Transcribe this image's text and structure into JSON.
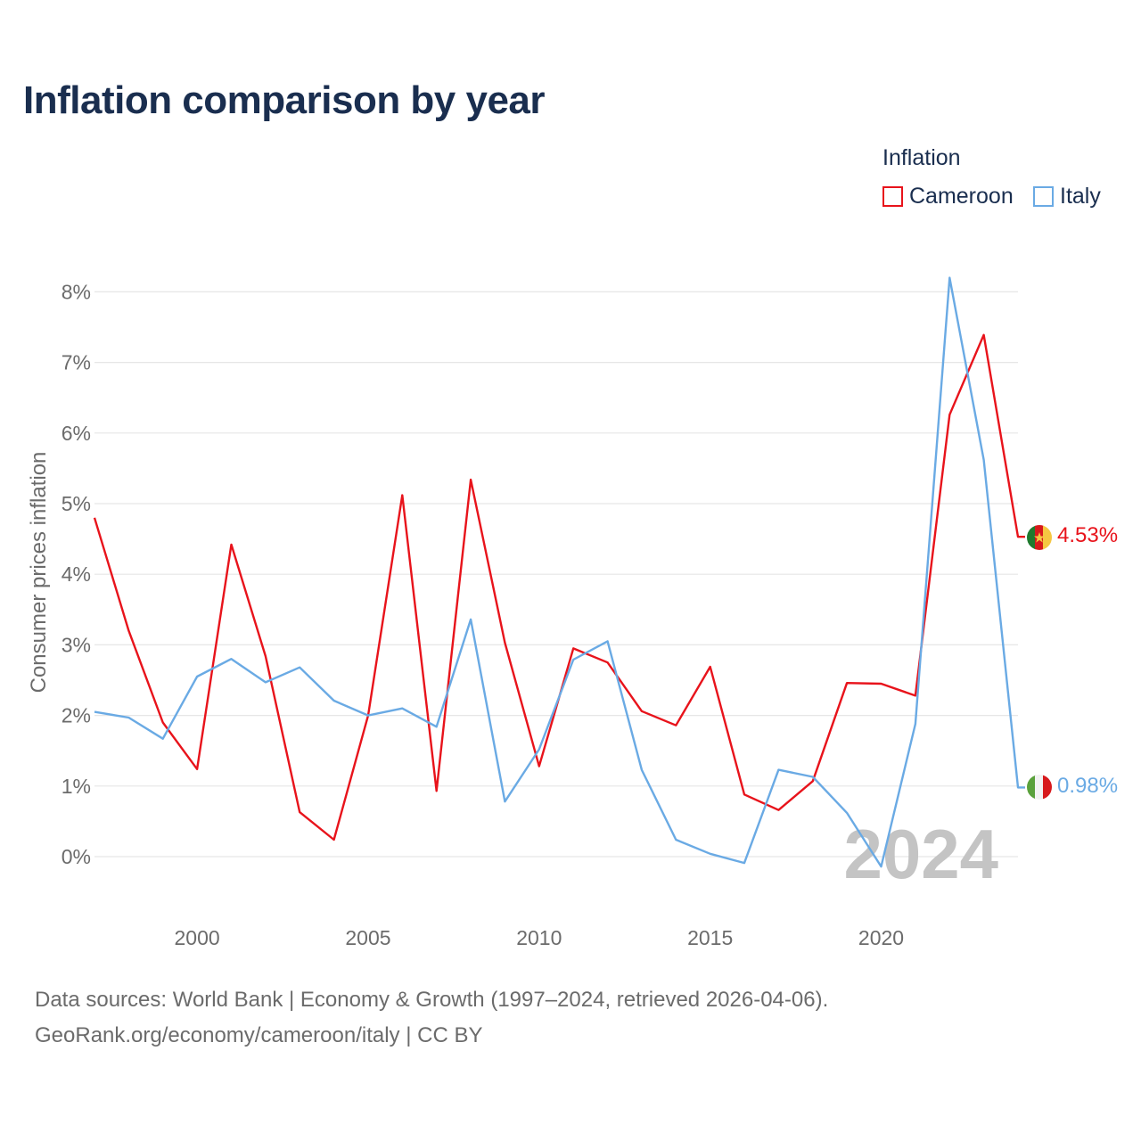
{
  "title": "Inflation comparison by year",
  "legend": {
    "title": "Inflation",
    "items": [
      {
        "label": "Cameroon",
        "color": "#e8131b"
      },
      {
        "label": "Italy",
        "color": "#6aaae4"
      }
    ]
  },
  "year_watermark": "2024",
  "footer": {
    "line1": "Data sources: World Bank | Economy & Growth (1997–2024, retrieved 2026-04-06).",
    "line2": "GeoRank.org/economy/cameroon/italy | CC BY"
  },
  "chart_data": {
    "type": "line",
    "title": "Inflation comparison by year",
    "xlabel": "",
    "ylabel": "Consumer prices inflation",
    "xlim": [
      1997,
      2024
    ],
    "ylim": [
      -0.8,
      8.4
    ],
    "x_ticks": [
      2000,
      2005,
      2010,
      2015,
      2020
    ],
    "y_ticks": [
      0,
      1,
      2,
      3,
      4,
      5,
      6,
      7,
      8
    ],
    "y_tick_labels": [
      "0%",
      "1%",
      "2%",
      "3%",
      "4%",
      "5%",
      "6%",
      "7%",
      "8%"
    ],
    "x": [
      1997,
      1998,
      1999,
      2000,
      2001,
      2002,
      2003,
      2004,
      2005,
      2006,
      2007,
      2008,
      2009,
      2010,
      2011,
      2012,
      2013,
      2014,
      2015,
      2016,
      2017,
      2018,
      2019,
      2020,
      2021,
      2022,
      2023,
      2024
    ],
    "series": [
      {
        "name": "Cameroon",
        "color": "#e8131b",
        "end_label": "4.53%",
        "values": [
          4.8,
          3.2,
          1.9,
          1.24,
          4.42,
          2.84,
          0.63,
          0.24,
          2.0,
          5.12,
          0.93,
          5.34,
          3.03,
          1.28,
          2.95,
          2.75,
          2.06,
          1.86,
          2.69,
          0.88,
          0.66,
          1.07,
          2.46,
          2.45,
          2.28,
          6.26,
          7.39,
          4.53
        ]
      },
      {
        "name": "Italy",
        "color": "#6aaae4",
        "end_label": "0.98%",
        "values": [
          2.05,
          1.97,
          1.67,
          2.55,
          2.8,
          2.47,
          2.68,
          2.21,
          2.0,
          2.1,
          1.84,
          3.36,
          0.78,
          1.52,
          2.79,
          3.05,
          1.23,
          0.24,
          0.04,
          -0.09,
          1.23,
          1.13,
          0.62,
          -0.14,
          1.88,
          8.2,
          5.62,
          0.98
        ]
      }
    ]
  }
}
